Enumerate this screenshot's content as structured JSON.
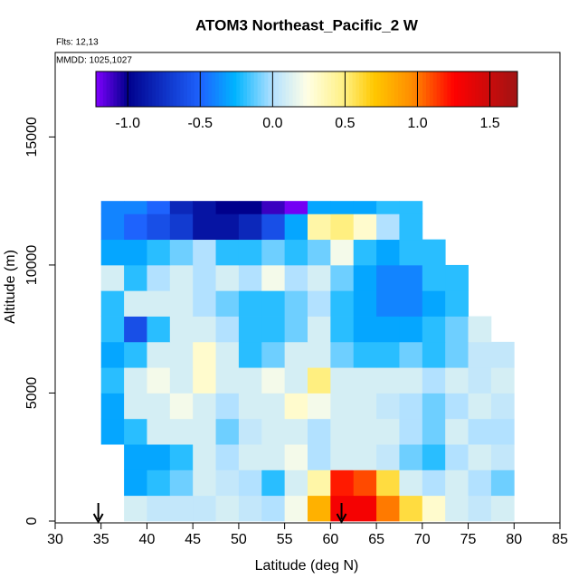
{
  "chart_data": {
    "type": "heatmap",
    "title": "ATOM3 Northeast_Pacific_2 W",
    "annotations": [
      "Flts: 12,13",
      "MMDD: 1025,1027"
    ],
    "xlabel": "Latitude (deg N)",
    "ylabel": "Altitude (m)",
    "xlim": [
      30,
      85
    ],
    "xticks": [
      30,
      35,
      40,
      45,
      50,
      55,
      60,
      65,
      70,
      75,
      80,
      85
    ],
    "ylim": [
      0,
      18300
    ],
    "yticks": [
      0,
      5000,
      10000,
      15000
    ],
    "xbins": [
      35,
      37.5,
      40,
      42.5,
      45,
      47.5,
      50,
      52.5,
      55,
      57.5,
      60,
      62.5,
      65,
      67.5,
      70,
      72.5,
      75,
      77.5,
      80
    ],
    "ybins": [
      0,
      1000,
      2000,
      3000,
      4000,
      5000,
      6000,
      7000,
      8000,
      9000,
      10000,
      11000,
      12000,
      12500
    ],
    "z": [
      [
        null,
        0.1,
        0.05,
        0.05,
        0.05,
        0.1,
        0.05,
        0.0,
        0.2,
        0.8,
        1.3,
        1.3,
        1.0,
        0.6,
        0.3,
        0.1,
        0.05,
        0.1
      ],
      [
        null,
        -0.3,
        -0.2,
        -0.1,
        0.1,
        0.05,
        0.0,
        -0.2,
        0.1,
        0.4,
        1.2,
        1.1,
        0.6,
        0.1,
        0.0,
        0.1,
        0.0,
        -0.1
      ],
      [
        null,
        -0.3,
        -0.3,
        -0.2,
        0.1,
        0.0,
        0.1,
        0.1,
        0.2,
        0.0,
        0.1,
        0.1,
        0.05,
        -0.1,
        -0.2,
        0.0,
        0.1,
        0.05
      ],
      [
        -0.3,
        -0.2,
        0.1,
        0.1,
        0.1,
        -0.1,
        0.05,
        0.1,
        0.1,
        0.0,
        0.1,
        0.1,
        0.1,
        0.0,
        -0.1,
        0.1,
        0.0,
        0.0
      ],
      [
        -0.3,
        0.1,
        0.1,
        0.2,
        0.1,
        0.0,
        0.1,
        0.1,
        0.3,
        0.2,
        0.1,
        0.1,
        0.05,
        0.0,
        -0.1,
        0.0,
        0.1,
        0.05
      ],
      [
        -0.2,
        0.1,
        0.2,
        0.1,
        0.3,
        0.1,
        0.1,
        0.2,
        0.1,
        0.5,
        0.1,
        0.1,
        0.1,
        0.1,
        0.0,
        0.1,
        0.05,
        0.1
      ],
      [
        -0.3,
        -0.2,
        0.1,
        0.1,
        0.3,
        0.1,
        -0.2,
        -0.1,
        0.1,
        0.1,
        -0.1,
        -0.2,
        -0.2,
        -0.1,
        -0.2,
        -0.1,
        0.05,
        0.05
      ],
      [
        -0.2,
        -0.6,
        -0.2,
        0.1,
        0.1,
        0.0,
        -0.2,
        -0.2,
        -0.1,
        0.1,
        -0.2,
        -0.3,
        -0.3,
        -0.3,
        -0.2,
        -0.1,
        0.1,
        null
      ],
      [
        -0.2,
        0.1,
        0.1,
        0.1,
        0.0,
        -0.1,
        -0.2,
        -0.2,
        -0.1,
        0.0,
        -0.2,
        -0.3,
        -0.4,
        -0.4,
        -0.3,
        -0.2,
        null,
        null
      ],
      [
        0.1,
        -0.2,
        0.0,
        0.1,
        0.0,
        0.1,
        0.0,
        0.2,
        0.0,
        0.1,
        -0.1,
        -0.3,
        -0.4,
        -0.4,
        -0.2,
        -0.2,
        null,
        null
      ],
      [
        -0.3,
        -0.3,
        -0.2,
        -0.1,
        0.0,
        -0.2,
        -0.2,
        -0.1,
        -0.2,
        -0.1,
        0.2,
        -0.2,
        -0.3,
        -0.2,
        -0.2,
        null,
        null,
        null
      ],
      [
        -0.4,
        -0.5,
        -0.6,
        -0.7,
        -0.9,
        -0.9,
        -0.8,
        -0.6,
        -0.3,
        0.4,
        0.5,
        0.3,
        0.0,
        -0.2,
        null,
        null,
        null,
        null
      ],
      [
        -0.4,
        -0.4,
        -0.5,
        -0.8,
        -0.9,
        -1.0,
        -1.0,
        -1.1,
        -1.2,
        -0.3,
        -0.3,
        -0.3,
        -0.2,
        -0.2,
        null,
        null,
        null,
        null
      ]
    ],
    "zlim": [
      -1.22,
      1.69
    ],
    "zticks": [
      {
        "value": -1,
        "label": "-1.0"
      },
      -0.5,
      {
        "value": 0,
        "label": "0.0"
      },
      0.5,
      {
        "value": 1,
        "label": "1.0"
      },
      1.5
    ],
    "arrows": [
      34.7,
      61.2
    ]
  }
}
